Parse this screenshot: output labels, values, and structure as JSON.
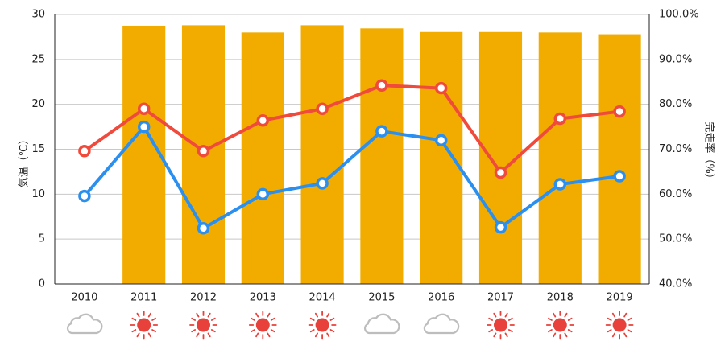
{
  "chart_data": {
    "type": "bar+line",
    "categories": [
      "2010",
      "2011",
      "2012",
      "2013",
      "2014",
      "2015",
      "2016",
      "2017",
      "2018",
      "2019"
    ],
    "left_axis": {
      "label": "気温（℃）",
      "ylim": [
        0,
        30
      ],
      "ticks": [
        "0",
        "5",
        "10",
        "15",
        "20",
        "25",
        "30"
      ]
    },
    "right_axis": {
      "label": "完走率（%）",
      "ylim": [
        40,
        100
      ],
      "ticks": [
        "40.0%",
        "50.0%",
        "60.0%",
        "70.0%",
        "80.0%",
        "90.0%",
        "100.0%"
      ]
    },
    "bars": {
      "axis": "right",
      "color": "#f2ac00",
      "values": [
        null,
        97.5,
        97.6,
        96.0,
        97.6,
        96.9,
        96.1,
        96.1,
        96.0,
        95.6
      ]
    },
    "series": [
      {
        "axis": "left",
        "color": "#f04a3c",
        "values": [
          14.8,
          19.5,
          14.8,
          18.2,
          19.5,
          22.1,
          21.8,
          12.4,
          18.4,
          19.2
        ]
      },
      {
        "axis": "left",
        "color": "#2b8ff0",
        "values": [
          9.8,
          17.5,
          6.2,
          10.0,
          11.2,
          17.0,
          16.0,
          6.3,
          11.1,
          12.0
        ]
      }
    ],
    "weather": [
      "cloud",
      "sun",
      "sun",
      "sun",
      "sun",
      "cloud",
      "cloud",
      "sun",
      "sun",
      "sun"
    ],
    "grid": true
  },
  "colors": {
    "grid": "#c8c8c8",
    "axis": "#222222",
    "sun": "#e8403a",
    "cloud": "#bdbdbd"
  }
}
